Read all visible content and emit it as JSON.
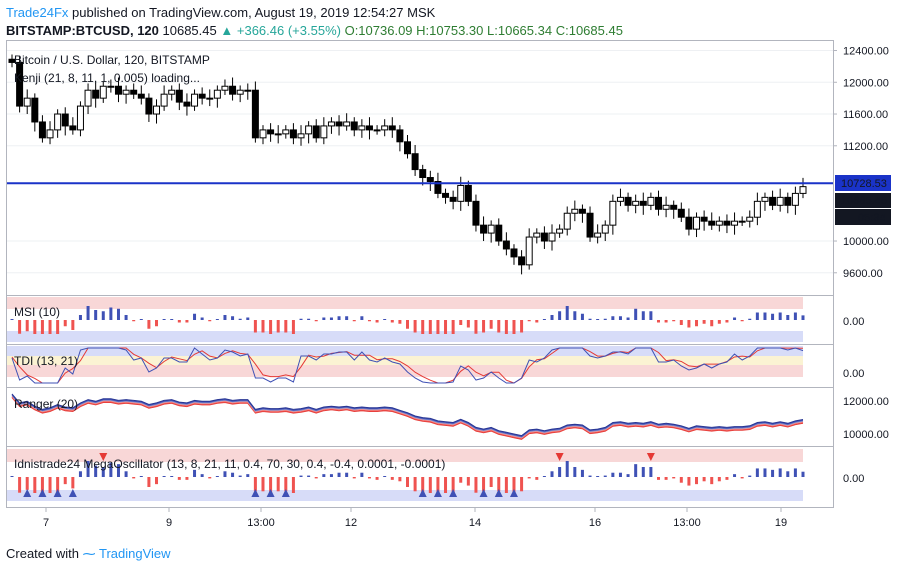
{
  "header": {
    "brand": "Trade24Fx",
    "published": "published on TradingView.com, August 19, 2019 12:54:27 MSK",
    "symbol": "BITSTAMP:BTCUSD, 120",
    "last": "10685.45",
    "change": "+366.46 (+3.55%)",
    "open": "O:10736.09",
    "high": "H:10753.30",
    "low": "L:10665.34",
    "close": "C:10685.45"
  },
  "footer": {
    "created_with": "Created with",
    "tradingview": "TradingView"
  },
  "colors": {
    "blue_line": "#1a33c8",
    "bear": "#000000",
    "bull": "#ffffff",
    "msi_pos": "#3f51b5",
    "msi_neg": "#ef5350",
    "band_red": "#f8d7d7",
    "band_blue": "#d7dcf8"
  },
  "chart_data": [
    {
      "type": "candlestick",
      "title": "Bitcoin / U.S. Dollar, 120, BITSTAMP",
      "subtitle": "Kenji (21, 8, 11, 1, 0.005) loading...",
      "y_ticks": [
        "12400.00",
        "12000.00",
        "11600.00",
        "11200.00",
        "10000.00",
        "9600.00"
      ],
      "ylim": [
        9320,
        12520
      ],
      "x_ticks": [
        "7",
        "9",
        "13:00",
        "12",
        "14",
        "16",
        "13:00",
        "19"
      ],
      "hline": 10728.53,
      "price_labels": [
        "10728.53",
        "10685.45",
        "05:34"
      ],
      "close": [
        12250,
        11700,
        11800,
        11500,
        11300,
        11400,
        11600,
        11450,
        11400,
        11700,
        11900,
        11800,
        11950,
        11950,
        11850,
        11900,
        11850,
        11800,
        11600,
        11700,
        11850,
        11900,
        11750,
        11700,
        11850,
        11800,
        11800,
        11900,
        11950,
        11850,
        11900,
        11900,
        11300,
        11400,
        11350,
        11350,
        11400,
        11300,
        11350,
        11450,
        11300,
        11450,
        11500,
        11450,
        11500,
        11400,
        11450,
        11400,
        11400,
        11450,
        11400,
        11250,
        11100,
        10900,
        10800,
        10750,
        10600,
        10550,
        10500,
        10700,
        10500,
        10200,
        10100,
        10200,
        10000,
        9900,
        9800,
        9700,
        10050,
        10100,
        10000,
        10100,
        10150,
        10350,
        10400,
        10350,
        10050,
        10100,
        10200,
        10500,
        10550,
        10450,
        10500,
        10450,
        10550,
        10400,
        10450,
        10400,
        10300,
        10150,
        10300,
        10250,
        10200,
        10250,
        10200,
        10250,
        10250,
        10300,
        10500,
        10550,
        10450,
        10550,
        10450,
        10600,
        10685
      ]
    },
    {
      "type": "bar",
      "title": "MSI (10)",
      "y_ticks": [
        "0.00"
      ]
    },
    {
      "type": "line",
      "title": "TDI (13, 21)",
      "y_ticks": [
        "0.00"
      ]
    },
    {
      "type": "line",
      "title": "Ranger (20)",
      "y_ticks": [
        "12000.00",
        "10000.00"
      ]
    },
    {
      "type": "bar",
      "title": "Idnistrade24 MegaOscillator (13, 8, 21, 11, 0.4, 70, 30, 0.4, -0.4, 0.0001, -0.0001)",
      "y_ticks": [
        "0.00"
      ]
    }
  ]
}
